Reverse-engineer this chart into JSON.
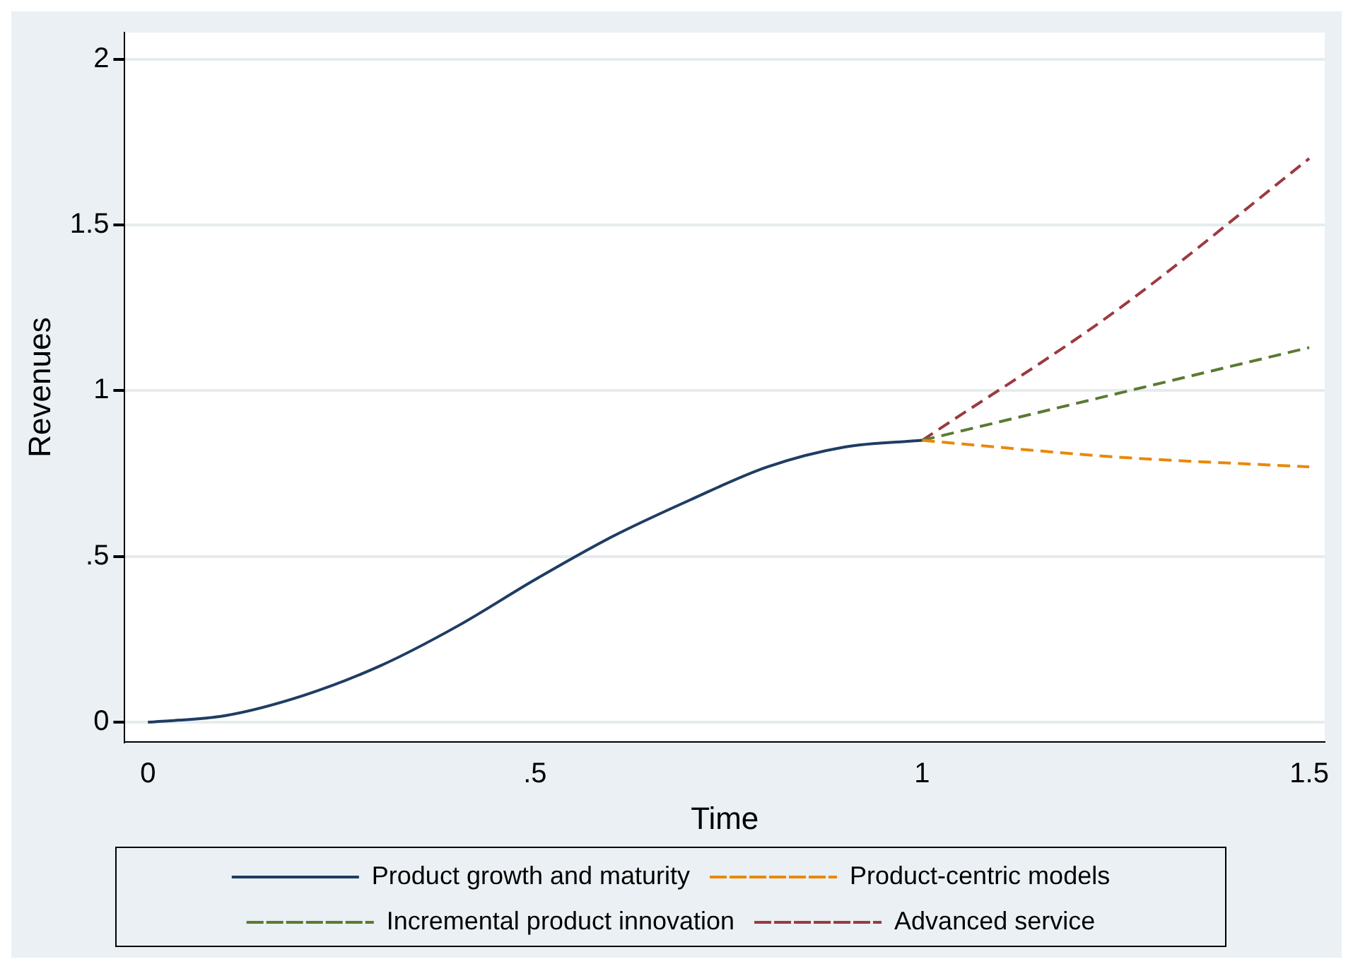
{
  "chart_data": {
    "type": "line",
    "xlabel": "Time",
    "ylabel": "Revenues",
    "xlim": [
      -0.03,
      1.52
    ],
    "ylim": [
      -0.06,
      2.08
    ],
    "xticks": [
      0,
      {
        "value": 0.5,
        "label": ".5"
      },
      1,
      1.5
    ],
    "yticks": [
      0,
      {
        "value": 0.5,
        "label": ".5"
      },
      1,
      1.5,
      2
    ],
    "grid": "y",
    "legend": "bottom",
    "marker": "none",
    "series": [
      {
        "name": "Product growth and maturity",
        "color": "#1f3d63",
        "line_style": "solid",
        "x": [
          0,
          0.1,
          0.2,
          0.3,
          0.4,
          0.5,
          0.6,
          0.7,
          0.8,
          0.9,
          1
        ],
        "values": [
          0,
          0.02,
          0.08,
          0.17,
          0.29,
          0.43,
          0.56,
          0.67,
          0.77,
          0.83,
          0.85
        ]
      },
      {
        "name": "Product-centric models",
        "color": "#e8890c",
        "line_style": "dashed",
        "x": [
          1,
          1.25,
          1.5
        ],
        "values": [
          0.85,
          0.8,
          0.77
        ]
      },
      {
        "name": "Incremental product innovation",
        "color": "#5a7a32",
        "line_style": "dashed",
        "x": [
          1,
          1.25,
          1.5
        ],
        "values": [
          0.85,
          0.99,
          1.13
        ]
      },
      {
        "name": "Advanced service",
        "color": "#9c3a3f",
        "line_style": "dashed",
        "x": [
          1,
          1.25,
          1.5
        ],
        "values": [
          0.85,
          1.24,
          1.7
        ]
      }
    ]
  }
}
